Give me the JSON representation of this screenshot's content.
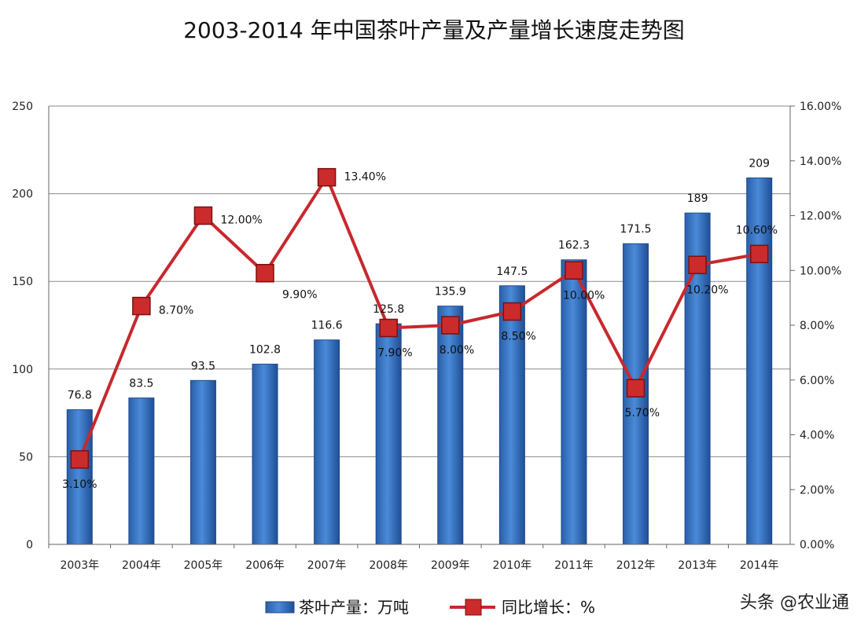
{
  "chart_data": {
    "type": "bar",
    "title": "2003-2014 年中国茶叶产量及产量增长速度走势图",
    "categories": [
      "2003年",
      "2004年",
      "2005年",
      "2006年",
      "2007年",
      "2008年",
      "2009年",
      "2010年",
      "2011年",
      "2012年",
      "2013年",
      "2014年"
    ],
    "series": [
      {
        "name": "茶叶产量：万吨",
        "type": "bar",
        "axis": "left",
        "color": "#2e6fc0",
        "values": [
          76.8,
          83.5,
          93.5,
          102.8,
          116.6,
          125.8,
          135.9,
          147.5,
          162.3,
          171.5,
          189,
          209
        ],
        "labels": [
          "76.8",
          "83.5",
          "93.5",
          "102.8",
          "116.6",
          "125.8",
          "135.9",
          "147.5",
          "162.3",
          "171.5",
          "189",
          "209"
        ]
      },
      {
        "name": "同比增长：%",
        "type": "line",
        "axis": "right",
        "color": "#c8282d",
        "values": [
          3.1,
          8.7,
          12.0,
          9.9,
          13.4,
          7.9,
          8.0,
          8.5,
          10.0,
          5.7,
          10.2,
          10.6
        ],
        "labels": [
          "3.10%",
          "8.70%",
          "12.00%",
          "9.90%",
          "13.40%",
          "7.90%",
          "8.00%",
          "8.50%",
          "10.00%",
          "5.70%",
          "10.20%",
          "10.60%"
        ]
      }
    ],
    "y_left": {
      "ticks": [
        "0",
        "50",
        "100",
        "150",
        "200",
        "250"
      ],
      "ylim": [
        0,
        250
      ]
    },
    "y_right": {
      "ticks": [
        "0.00%",
        "2.00%",
        "4.00%",
        "6.00%",
        "8.00%",
        "10.00%",
        "12.00%",
        "14.00%",
        "16.00%"
      ],
      "ylim": [
        0,
        16
      ]
    },
    "grid": true,
    "legend_position": "bottom"
  },
  "watermark": "头条 @农业通"
}
